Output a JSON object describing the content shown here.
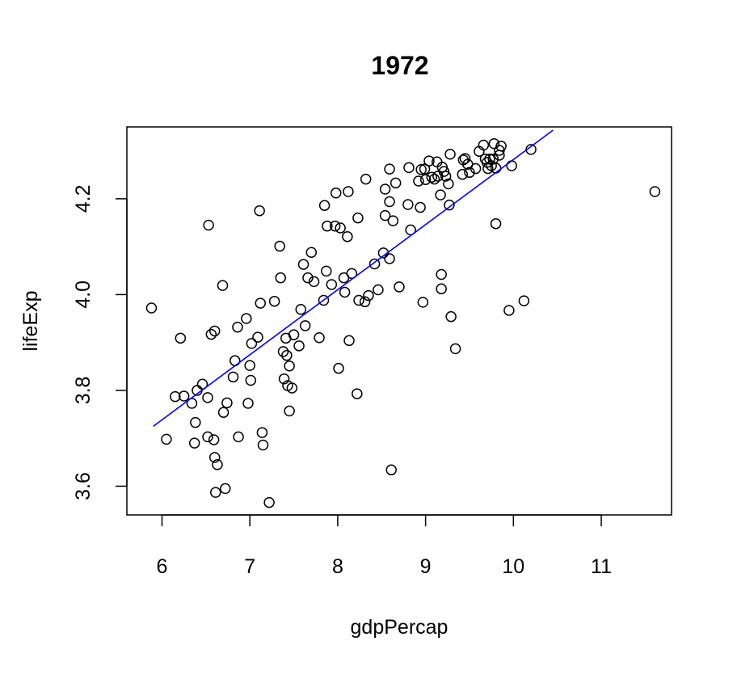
{
  "chart_data": {
    "type": "scatter",
    "title": "1972",
    "xlabel": "gdpPercap",
    "ylabel": "lifeExp",
    "xlim": [
      5.6,
      11.8
    ],
    "ylim": [
      3.54,
      4.35
    ],
    "xticks": [
      6,
      7,
      8,
      9,
      10,
      11
    ],
    "yticks": [
      3.6,
      3.8,
      4.0,
      4.2
    ],
    "ytick_labels": [
      "3.6",
      "3.8",
      "4.0",
      "4.2"
    ],
    "grid": false,
    "regression_line": {
      "color": "#0000ff",
      "x": [
        5.9,
        10.45
      ],
      "y": [
        3.725,
        4.343
      ]
    },
    "points": [
      [
        5.88,
        3.972
      ],
      [
        6.05,
        3.698
      ],
      [
        6.15,
        3.787
      ],
      [
        6.21,
        3.909
      ],
      [
        6.25,
        3.788
      ],
      [
        6.34,
        3.773
      ],
      [
        6.37,
        3.69
      ],
      [
        6.38,
        3.733
      ],
      [
        6.4,
        3.8
      ],
      [
        6.46,
        3.813
      ],
      [
        6.52,
        3.785
      ],
      [
        6.52,
        3.703
      ],
      [
        6.53,
        4.145
      ],
      [
        6.56,
        3.917
      ],
      [
        6.6,
        3.924
      ],
      [
        6.59,
        3.697
      ],
      [
        6.6,
        3.66
      ],
      [
        6.63,
        3.645
      ],
      [
        6.61,
        3.587
      ],
      [
        6.69,
        4.019
      ],
      [
        6.7,
        3.754
      ],
      [
        6.72,
        3.595
      ],
      [
        6.74,
        3.774
      ],
      [
        6.81,
        3.828
      ],
      [
        6.83,
        3.862
      ],
      [
        6.86,
        3.932
      ],
      [
        6.87,
        3.703
      ],
      [
        6.96,
        3.95
      ],
      [
        6.98,
        3.773
      ],
      [
        7.0,
        3.852
      ],
      [
        7.01,
        3.821
      ],
      [
        7.02,
        3.898
      ],
      [
        7.09,
        3.911
      ],
      [
        7.11,
        4.175
      ],
      [
        7.12,
        3.982
      ],
      [
        7.14,
        3.712
      ],
      [
        7.15,
        3.686
      ],
      [
        7.22,
        3.566
      ],
      [
        7.28,
        3.986
      ],
      [
        7.34,
        4.101
      ],
      [
        7.35,
        4.035
      ],
      [
        7.38,
        3.881
      ],
      [
        7.39,
        3.824
      ],
      [
        7.41,
        3.909
      ],
      [
        7.42,
        3.873
      ],
      [
        7.43,
        3.81
      ],
      [
        7.45,
        3.851
      ],
      [
        7.45,
        3.757
      ],
      [
        7.48,
        3.805
      ],
      [
        7.5,
        3.916
      ],
      [
        7.56,
        3.893
      ],
      [
        7.58,
        3.969
      ],
      [
        7.61,
        4.063
      ],
      [
        7.63,
        3.935
      ],
      [
        7.66,
        4.035
      ],
      [
        7.7,
        4.088
      ],
      [
        7.73,
        4.027
      ],
      [
        7.79,
        3.91
      ],
      [
        7.84,
        3.988
      ],
      [
        7.85,
        4.186
      ],
      [
        7.87,
        4.049
      ],
      [
        7.88,
        4.143
      ],
      [
        7.93,
        4.021
      ],
      [
        7.97,
        4.143
      ],
      [
        7.98,
        4.212
      ],
      [
        8.01,
        3.846
      ],
      [
        8.03,
        4.139
      ],
      [
        8.07,
        4.035
      ],
      [
        8.08,
        4.005
      ],
      [
        8.11,
        4.121
      ],
      [
        8.12,
        4.215
      ],
      [
        8.13,
        3.904
      ],
      [
        8.16,
        4.044
      ],
      [
        8.22,
        3.793
      ],
      [
        8.23,
        4.16
      ],
      [
        8.24,
        3.988
      ],
      [
        8.31,
        3.985
      ],
      [
        8.32,
        4.241
      ],
      [
        8.35,
        3.998
      ],
      [
        8.42,
        4.064
      ],
      [
        8.46,
        4.01
      ],
      [
        8.52,
        4.087
      ],
      [
        8.54,
        4.165
      ],
      [
        8.54,
        4.22
      ],
      [
        8.59,
        4.075
      ],
      [
        8.59,
        4.194
      ],
      [
        8.59,
        4.262
      ],
      [
        8.61,
        3.634
      ],
      [
        8.63,
        4.154
      ],
      [
        8.66,
        4.233
      ],
      [
        8.7,
        4.016
      ],
      [
        8.8,
        4.188
      ],
      [
        8.81,
        4.265
      ],
      [
        8.83,
        4.135
      ],
      [
        8.92,
        4.237
      ],
      [
        8.94,
        4.182
      ],
      [
        8.95,
        4.261
      ],
      [
        8.97,
        3.984
      ],
      [
        8.99,
        4.262
      ],
      [
        9.0,
        4.24
      ],
      [
        9.04,
        4.279
      ],
      [
        9.07,
        4.245
      ],
      [
        9.1,
        4.241
      ],
      [
        9.13,
        4.277
      ],
      [
        9.14,
        4.247
      ],
      [
        9.17,
        4.208
      ],
      [
        9.18,
        4.042
      ],
      [
        9.18,
        4.012
      ],
      [
        9.19,
        4.266
      ],
      [
        9.21,
        4.257
      ],
      [
        9.23,
        4.247
      ],
      [
        9.26,
        4.231
      ],
      [
        9.27,
        4.187
      ],
      [
        9.28,
        4.293
      ],
      [
        9.29,
        3.954
      ],
      [
        9.34,
        3.887
      ],
      [
        9.42,
        4.251
      ],
      [
        9.43,
        4.281
      ],
      [
        9.45,
        4.284
      ],
      [
        9.48,
        4.272
      ],
      [
        9.5,
        4.255
      ],
      [
        9.57,
        4.263
      ],
      [
        9.61,
        4.299
      ],
      [
        9.66,
        4.312
      ],
      [
        9.68,
        4.283
      ],
      [
        9.7,
        4.276
      ],
      [
        9.71,
        4.263
      ],
      [
        9.73,
        4.283
      ],
      [
        9.75,
        4.269
      ],
      [
        9.77,
        4.283
      ],
      [
        9.78,
        4.315
      ],
      [
        9.8,
        4.264
      ],
      [
        9.8,
        4.148
      ],
      [
        9.84,
        4.291
      ],
      [
        9.84,
        4.301
      ],
      [
        9.86,
        4.31
      ],
      [
        9.95,
        3.967
      ],
      [
        9.98,
        4.269
      ],
      [
        10.12,
        3.987
      ],
      [
        10.2,
        4.303
      ],
      [
        11.61,
        4.215
      ]
    ]
  }
}
